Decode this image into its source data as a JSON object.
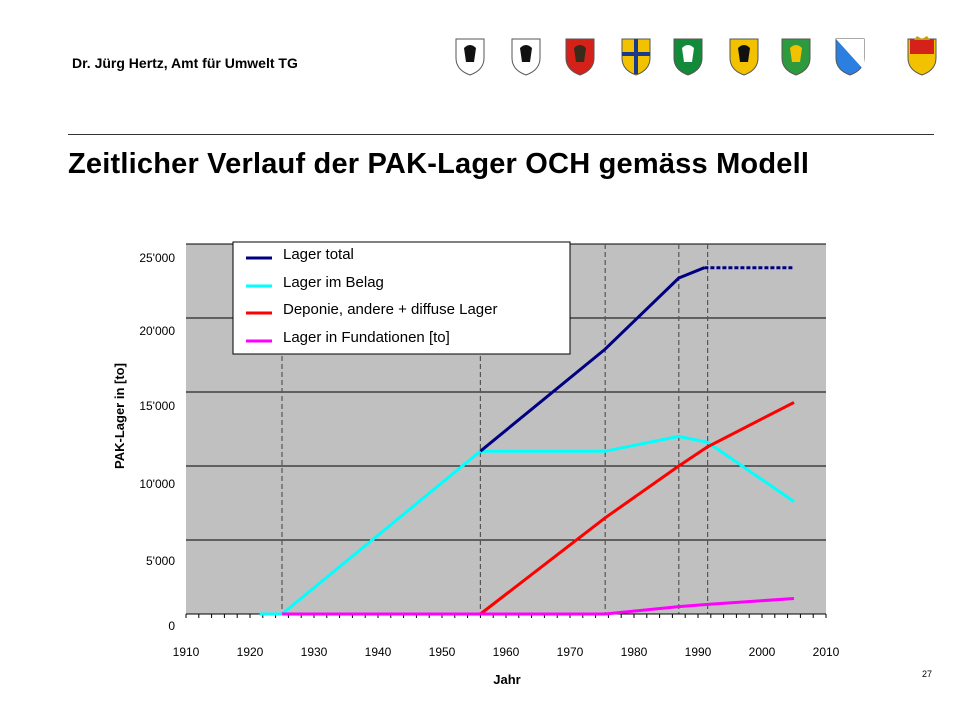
{
  "header": {
    "author": "Dr. Jürg Hertz, Amt für Umwelt TG",
    "title": "Zeitlicher Verlauf der PAK-Lager OCH gemäss Modell",
    "slide_number": "27"
  },
  "crests": [
    {
      "name": "schaffhausen-crest",
      "icon": "black-ram-shield",
      "fill": "#ffffff",
      "accent": "#111111"
    },
    {
      "name": "appenzell-crest",
      "icon": "black-bear-shield",
      "fill": "#ffffff",
      "accent": "#111111"
    },
    {
      "name": "appenzell-innerrhoden-crest",
      "icon": "monk-shield",
      "fill": "#d4221a",
      "accent": "#3a2a1a"
    },
    {
      "name": "glarus-crest",
      "icon": "quartered-shield",
      "fill": "#f2c200",
      "accent": "#1a3a8c"
    },
    {
      "name": "st-gallen-crest",
      "icon": "fasces-shield",
      "fill": "#138a3a",
      "accent": "#ffffff"
    },
    {
      "name": "graubuenden-crest",
      "icon": "ibex-shield",
      "fill": "#f2c200",
      "accent": "#111111"
    },
    {
      "name": "thurgau-crest",
      "icon": "lions-shield",
      "fill": "#2e9a3e",
      "accent": "#f2c200"
    },
    {
      "name": "zuerich-crest",
      "icon": "diagonal-blue-shield",
      "fill": "#2a7fe0",
      "accent": "#ffffff"
    },
    {
      "name": "liechtenstein-crest",
      "icon": "crown-shield",
      "fill": "#f2c200",
      "accent": "#d4221a"
    }
  ],
  "chart_data": {
    "type": "line",
    "title": "",
    "xlabel": "Jahr",
    "ylabel": "PAK-Lager in [to]",
    "xlim": [
      1910,
      2010
    ],
    "ylim": [
      0,
      25000
    ],
    "x_ticks": [
      "1910",
      "1920",
      "1930",
      "1940",
      "1950",
      "1960",
      "1970",
      "1980",
      "1990",
      "2000",
      "2010"
    ],
    "y_ticks": [
      "0",
      "5'000",
      "10'000",
      "15'000",
      "20'000",
      "25'000"
    ],
    "grid": true,
    "plot_background": "#c0c0c0",
    "legend_position": "top-left",
    "vertical_reference_years": [
      1925,
      1956,
      1975.5,
      1987,
      1991.5
    ],
    "series": [
      {
        "name": "Lager total",
        "color": "#000080",
        "points": [
          [
            1956,
            11000
          ],
          [
            1975.5,
            17900
          ],
          [
            1987,
            22700
          ],
          [
            1991,
            23400
          ]
        ],
        "dashed_points": [
          [
            1991,
            23400
          ],
          [
            2005,
            23400
          ]
        ]
      },
      {
        "name": "Lager im Belag",
        "color": "#00ffff",
        "points": [
          [
            1921.5,
            0
          ],
          [
            1925,
            0
          ],
          [
            1956,
            11000
          ],
          [
            1975.5,
            11000
          ],
          [
            1987,
            12000
          ],
          [
            1991.5,
            11600
          ],
          [
            2005,
            7600
          ]
        ]
      },
      {
        "name": "Deponie, andere + diffuse Lager",
        "color": "#ff0000",
        "points": [
          [
            1956,
            0
          ],
          [
            1975.5,
            6500
          ],
          [
            1987,
            10000
          ],
          [
            1991.5,
            11300
          ],
          [
            2005,
            14300
          ]
        ]
      },
      {
        "name": "Lager in Fundationen [to]",
        "color": "#ff00ff",
        "points": [
          [
            1925,
            0
          ],
          [
            1975.5,
            0
          ],
          [
            1987,
            500
          ],
          [
            1991.5,
            650
          ],
          [
            2005,
            1050
          ]
        ]
      }
    ]
  }
}
